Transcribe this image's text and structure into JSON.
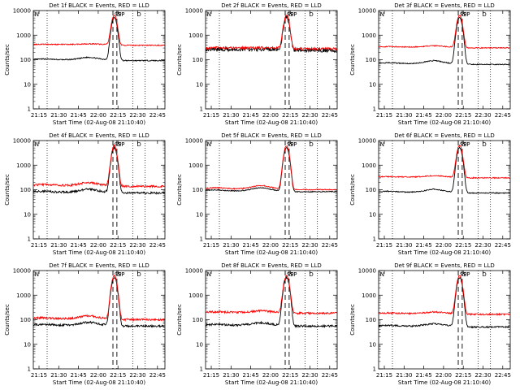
{
  "chart_data": [
    {
      "type": "line",
      "title": "Det 1f BLACK = Events, RED = LLD",
      "xlabel": "Start Time (02-Aug-08 21:10:40)",
      "ylabel": "Counts/sec",
      "yscale": "log",
      "ylim": [
        1,
        10000
      ],
      "xticks": [
        "21:15",
        "21:30",
        "21:45",
        "22:00",
        "22:15",
        "22:30",
        "22:45"
      ],
      "yticks": [
        "1",
        "10",
        "100",
        "1000",
        "10000"
      ],
      "markers": [
        "N",
        "SP",
        "SP",
        "D"
      ],
      "series": [
        {
          "color": "#000000",
          "base": 100,
          "wave": 1.25,
          "noise": 0.02
        },
        {
          "color": "#ff0000",
          "base": 420,
          "wave": 1.05,
          "noise": 0.02
        }
      ]
    },
    {
      "type": "line",
      "title": "Det 2f BLACK = Events, RED = LLD",
      "xlabel": "Start Time (02-Aug-08 21:10:40)",
      "ylabel": "Counts/sec",
      "yscale": "log",
      "ylim": [
        1,
        10000
      ],
      "xticks": [
        "21:15",
        "21:30",
        "21:45",
        "22:00",
        "22:15",
        "22:30",
        "22:45"
      ],
      "yticks": [
        "1",
        "10",
        "100",
        "1000",
        "10000"
      ],
      "markers": [
        "N",
        "SP",
        "SP",
        "D"
      ],
      "series": [
        {
          "color": "#000000",
          "base": 260,
          "wave": 1.03,
          "noise": 0.07
        },
        {
          "color": "#ff0000",
          "base": 300,
          "wave": 1.03,
          "noise": 0.05
        }
      ]
    },
    {
      "type": "line",
      "title": "Det 3f BLACK = Events, RED = LLD",
      "xlabel": "Start Time (02-Aug-08 21:10:40)",
      "ylabel": "Counts/sec",
      "yscale": "log",
      "ylim": [
        1,
        10000
      ],
      "xticks": [
        "21:15",
        "21:30",
        "21:45",
        "22:00",
        "22:15",
        "22:30",
        "22:45"
      ],
      "yticks": [
        "1",
        "10",
        "100",
        "1000",
        "10000"
      ],
      "markers": [
        "N",
        "SP",
        "SP",
        "D"
      ],
      "series": [
        {
          "color": "#000000",
          "base": 70,
          "wave": 1.3,
          "noise": 0.02
        },
        {
          "color": "#ff0000",
          "base": 330,
          "wave": 1.12,
          "noise": 0.02
        }
      ]
    },
    {
      "type": "line",
      "title": "Det 4f BLACK = Events, RED = LLD",
      "xlabel": "Start Time (02-Aug-08 21:10:40)",
      "ylabel": "Counts/sec",
      "yscale": "log",
      "ylim": [
        1,
        10000
      ],
      "xticks": [
        "21:15",
        "21:30",
        "21:45",
        "22:00",
        "22:15",
        "22:30",
        "22:45"
      ],
      "yticks": [
        "1",
        "10",
        "100",
        "1000",
        "10000"
      ],
      "markers": [
        "N",
        "SP",
        "SP",
        "D"
      ],
      "series": [
        {
          "color": "#000000",
          "base": 80,
          "wave": 1.3,
          "noise": 0.04
        },
        {
          "color": "#ff0000",
          "base": 150,
          "wave": 1.3,
          "noise": 0.04
        }
      ]
    },
    {
      "type": "line",
      "title": "Det 5f BLACK = Events, RED = LLD",
      "xlabel": "Start Time (02-Aug-08 21:10:40)",
      "ylabel": "Counts/sec",
      "yscale": "log",
      "ylim": [
        1,
        10000
      ],
      "xticks": [
        "21:15",
        "21:30",
        "21:45",
        "22:00",
        "22:15",
        "22:30",
        "22:45"
      ],
      "yticks": [
        "1",
        "10",
        "100",
        "1000",
        "10000"
      ],
      "markers": [
        "N",
        "SP",
        "SP",
        "D"
      ],
      "series": [
        {
          "color": "#000000",
          "base": 90,
          "wave": 1.35,
          "noise": 0.02
        },
        {
          "color": "#ff0000",
          "base": 110,
          "wave": 1.35,
          "noise": 0.02
        }
      ]
    },
    {
      "type": "line",
      "title": "Det 6f BLACK = Events, RED = LLD",
      "xlabel": "Start Time (02-Aug-08 21:10:40)",
      "ylabel": "Counts/sec",
      "yscale": "log",
      "ylim": [
        1,
        10000
      ],
      "xticks": [
        "21:15",
        "21:30",
        "21:45",
        "22:00",
        "22:15",
        "22:30",
        "22:45"
      ],
      "yticks": [
        "1",
        "10",
        "100",
        "1000",
        "10000"
      ],
      "markers": [
        "N",
        "SP",
        "SP",
        "D"
      ],
      "series": [
        {
          "color": "#000000",
          "base": 80,
          "wave": 1.3,
          "noise": 0.02
        },
        {
          "color": "#ff0000",
          "base": 330,
          "wave": 1.12,
          "noise": 0.02
        }
      ]
    },
    {
      "type": "line",
      "title": "Det 7f BLACK = Events, RED = LLD",
      "xlabel": "Start Time (02-Aug-08 21:10:40)",
      "ylabel": "Counts/sec",
      "yscale": "log",
      "ylim": [
        1,
        10000
      ],
      "xticks": [
        "21:15",
        "21:30",
        "21:45",
        "22:00",
        "22:15",
        "22:30",
        "22:45"
      ],
      "yticks": [
        "1",
        "10",
        "100",
        "1000",
        "10000"
      ],
      "markers": [
        "N",
        "SP",
        "SP",
        "D"
      ],
      "series": [
        {
          "color": "#000000",
          "base": 60,
          "wave": 1.3,
          "noise": 0.04
        },
        {
          "color": "#ff0000",
          "base": 110,
          "wave": 1.3,
          "noise": 0.04
        }
      ]
    },
    {
      "type": "line",
      "title": "Det 8f BLACK = Events, RED = LLD",
      "xlabel": "Start Time (02-Aug-08 21:10:40)",
      "ylabel": "Counts/sec",
      "yscale": "log",
      "ylim": [
        1,
        10000
      ],
      "xticks": [
        "21:15",
        "21:30",
        "21:45",
        "22:00",
        "22:15",
        "22:30",
        "22:45"
      ],
      "yticks": [
        "1",
        "10",
        "100",
        "1000",
        "10000"
      ],
      "markers": [
        "N",
        "SP",
        "SP",
        "D"
      ],
      "series": [
        {
          "color": "#000000",
          "base": 60,
          "wave": 1.25,
          "noise": 0.04
        },
        {
          "color": "#ff0000",
          "base": 200,
          "wave": 1.15,
          "noise": 0.04
        }
      ]
    },
    {
      "type": "line",
      "title": "Det 9f BLACK = Events, RED = LLD",
      "xlabel": "Start Time (02-Aug-08 21:10:40)",
      "ylabel": "Counts/sec",
      "yscale": "log",
      "ylim": [
        1,
        10000
      ],
      "xticks": [
        "21:15",
        "21:30",
        "21:45",
        "22:00",
        "22:15",
        "22:30",
        "22:45"
      ],
      "yticks": [
        "1",
        "10",
        "100",
        "1000",
        "10000"
      ],
      "markers": [
        "N",
        "SP",
        "SP",
        "D"
      ],
      "series": [
        {
          "color": "#000000",
          "base": 55,
          "wave": 1.25,
          "noise": 0.03
        },
        {
          "color": "#ff0000",
          "base": 180,
          "wave": 1.15,
          "noise": 0.03
        }
      ]
    }
  ]
}
